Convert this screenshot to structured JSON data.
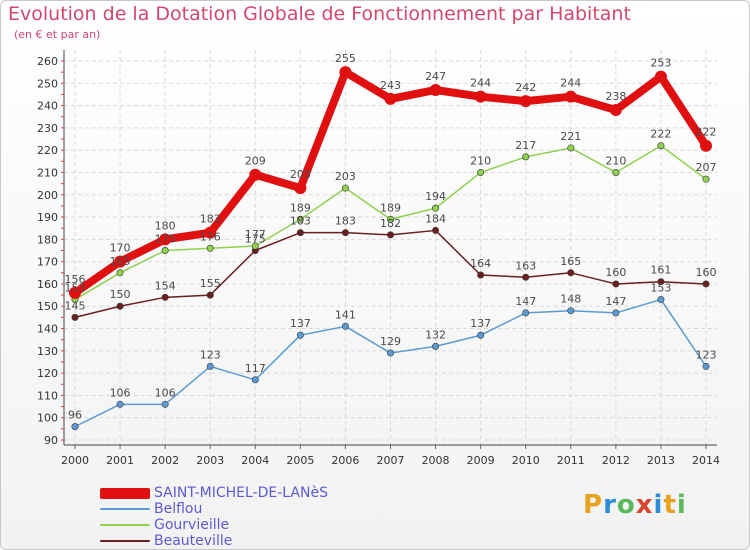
{
  "title": "Evolution de la Dotation Globale de Fonctionnement par Habitant",
  "subtitle": "(en € et par an)",
  "logo": {
    "letters": [
      "P",
      "r",
      "o",
      "x",
      "i",
      "t",
      "i"
    ],
    "colors": [
      "#e8a020",
      "#2e8bd6",
      "#5cb85c",
      "#d9432f",
      "#2e8bd6",
      "#e8a020",
      "#5cb85c"
    ]
  },
  "chart_data": {
    "type": "line",
    "title": "Evolution de la Dotation Globale de Fonctionnement par Habitant",
    "ylabel": "(en € et par an)",
    "xlabel": "",
    "x": [
      "2000",
      "2001",
      "2002",
      "2003",
      "2004",
      "2005",
      "2006",
      "2007",
      "2008",
      "2009",
      "2010",
      "2011",
      "2012",
      "2013",
      "2014"
    ],
    "yticks": [
      90,
      100,
      110,
      120,
      130,
      140,
      150,
      160,
      170,
      180,
      190,
      200,
      210,
      220,
      230,
      240,
      250,
      260
    ],
    "ylim": [
      90,
      260
    ],
    "grid": true,
    "legend_position": "bottom-left",
    "series": [
      {
        "name": "SAINT-MICHEL-DE-LANèS",
        "color": "#e01010",
        "values": [
          156,
          170,
          180,
          183,
          209,
          203,
          255,
          243,
          247,
          244,
          242,
          244,
          238,
          253,
          222
        ]
      },
      {
        "name": "Belflou",
        "color": "#5a9bd5",
        "values": [
          96,
          106,
          106,
          123,
          117,
          137,
          141,
          129,
          132,
          137,
          147,
          148,
          147,
          153,
          123
        ]
      },
      {
        "name": "Gourvieille",
        "color": "#8fd14f",
        "values": [
          153,
          165,
          175,
          176,
          177,
          189,
          203,
          189,
          194,
          210,
          217,
          221,
          210,
          222,
          207
        ]
      },
      {
        "name": "Beauteville",
        "color": "#6b1f1f",
        "values": [
          145,
          150,
          154,
          155,
          175,
          183,
          183,
          182,
          184,
          164,
          163,
          165,
          160,
          161,
          160
        ]
      }
    ]
  }
}
